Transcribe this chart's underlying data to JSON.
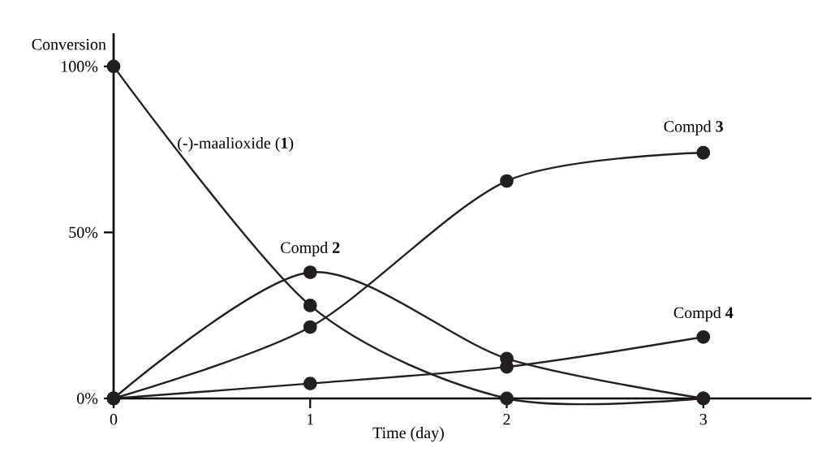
{
  "chart_data": {
    "type": "line",
    "xlabel": "Time (day)",
    "ylabel": "Conversion",
    "x": [
      0,
      1,
      2,
      3
    ],
    "xlim": [
      0,
      3.55
    ],
    "ylim": [
      0,
      110
    ],
    "xticks": [
      0,
      1,
      2,
      3
    ],
    "yticks": [
      {
        "value": 0,
        "label": "0%"
      },
      {
        "value": 50,
        "label": "50%"
      },
      {
        "value": 100,
        "label": "100%"
      }
    ],
    "marker": "circle",
    "line_style": "solid",
    "grid": false,
    "legend": false,
    "series": [
      {
        "name": "(-)-maalioxide (**1**)",
        "color": "#231f20",
        "values": [
          100,
          28,
          0,
          0
        ]
      },
      {
        "name": "Compd **2**",
        "color": "#231f20",
        "values": [
          0,
          38,
          12,
          0
        ]
      },
      {
        "name": "Compd **3**",
        "color": "#231f20",
        "values": [
          0,
          21.5,
          65.5,
          74
        ]
      },
      {
        "name": "Compd **4**",
        "color": "#231f20",
        "values": [
          0,
          4.5,
          9.5,
          18.5
        ]
      }
    ]
  }
}
